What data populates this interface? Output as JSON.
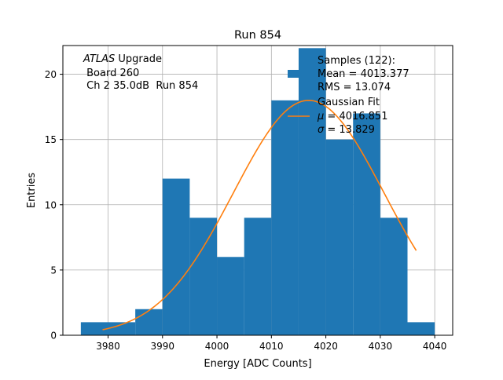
{
  "chart_data": {
    "type": "bar",
    "title": "Run 854",
    "xlabel": "Energy [ADC Counts]",
    "ylabel": "Entries",
    "xlim": [
      3971.7,
      4043.3
    ],
    "ylim": [
      0,
      22.2
    ],
    "grid": true,
    "x_ticks": [
      3980,
      3990,
      4000,
      4010,
      4020,
      4030,
      4040
    ],
    "y_ticks": [
      0,
      5,
      10,
      15,
      20
    ],
    "histogram": {
      "name": "Samples (122):",
      "color": "#1f77b4",
      "bin_edges": [
        3975,
        3980,
        3985,
        3990,
        3995,
        4000,
        4005,
        4010,
        4015,
        4020,
        4025,
        4030,
        4035,
        4040
      ],
      "counts": [
        1,
        1,
        2,
        12,
        9,
        6,
        9,
        18,
        22,
        15,
        17,
        9,
        1
      ]
    },
    "fit": {
      "name": "Gaussian Fit",
      "color": "#ff7f0e",
      "mu": 4016.851,
      "sigma": 13.829,
      "amplitude": 18,
      "x_range": [
        3979,
        4036.6
      ]
    },
    "annotation": {
      "italic": "ATLAS",
      "line1_rest": " Upgrade",
      "line2": " Board 260",
      "line3": " Ch 2 35.0dB  Run 854"
    },
    "legend": {
      "position": "top-right",
      "hist_lines": [
        "Samples (122):",
        "Mean = 4013.377",
        "RMS = 13.074"
      ],
      "fit_title": "Gaussian Fit",
      "fit_mu_symbol": "μ",
      "fit_mu_value": " = 4016.851",
      "fit_sigma_symbol": "σ",
      "fit_sigma_value": " = 13.829"
    }
  }
}
